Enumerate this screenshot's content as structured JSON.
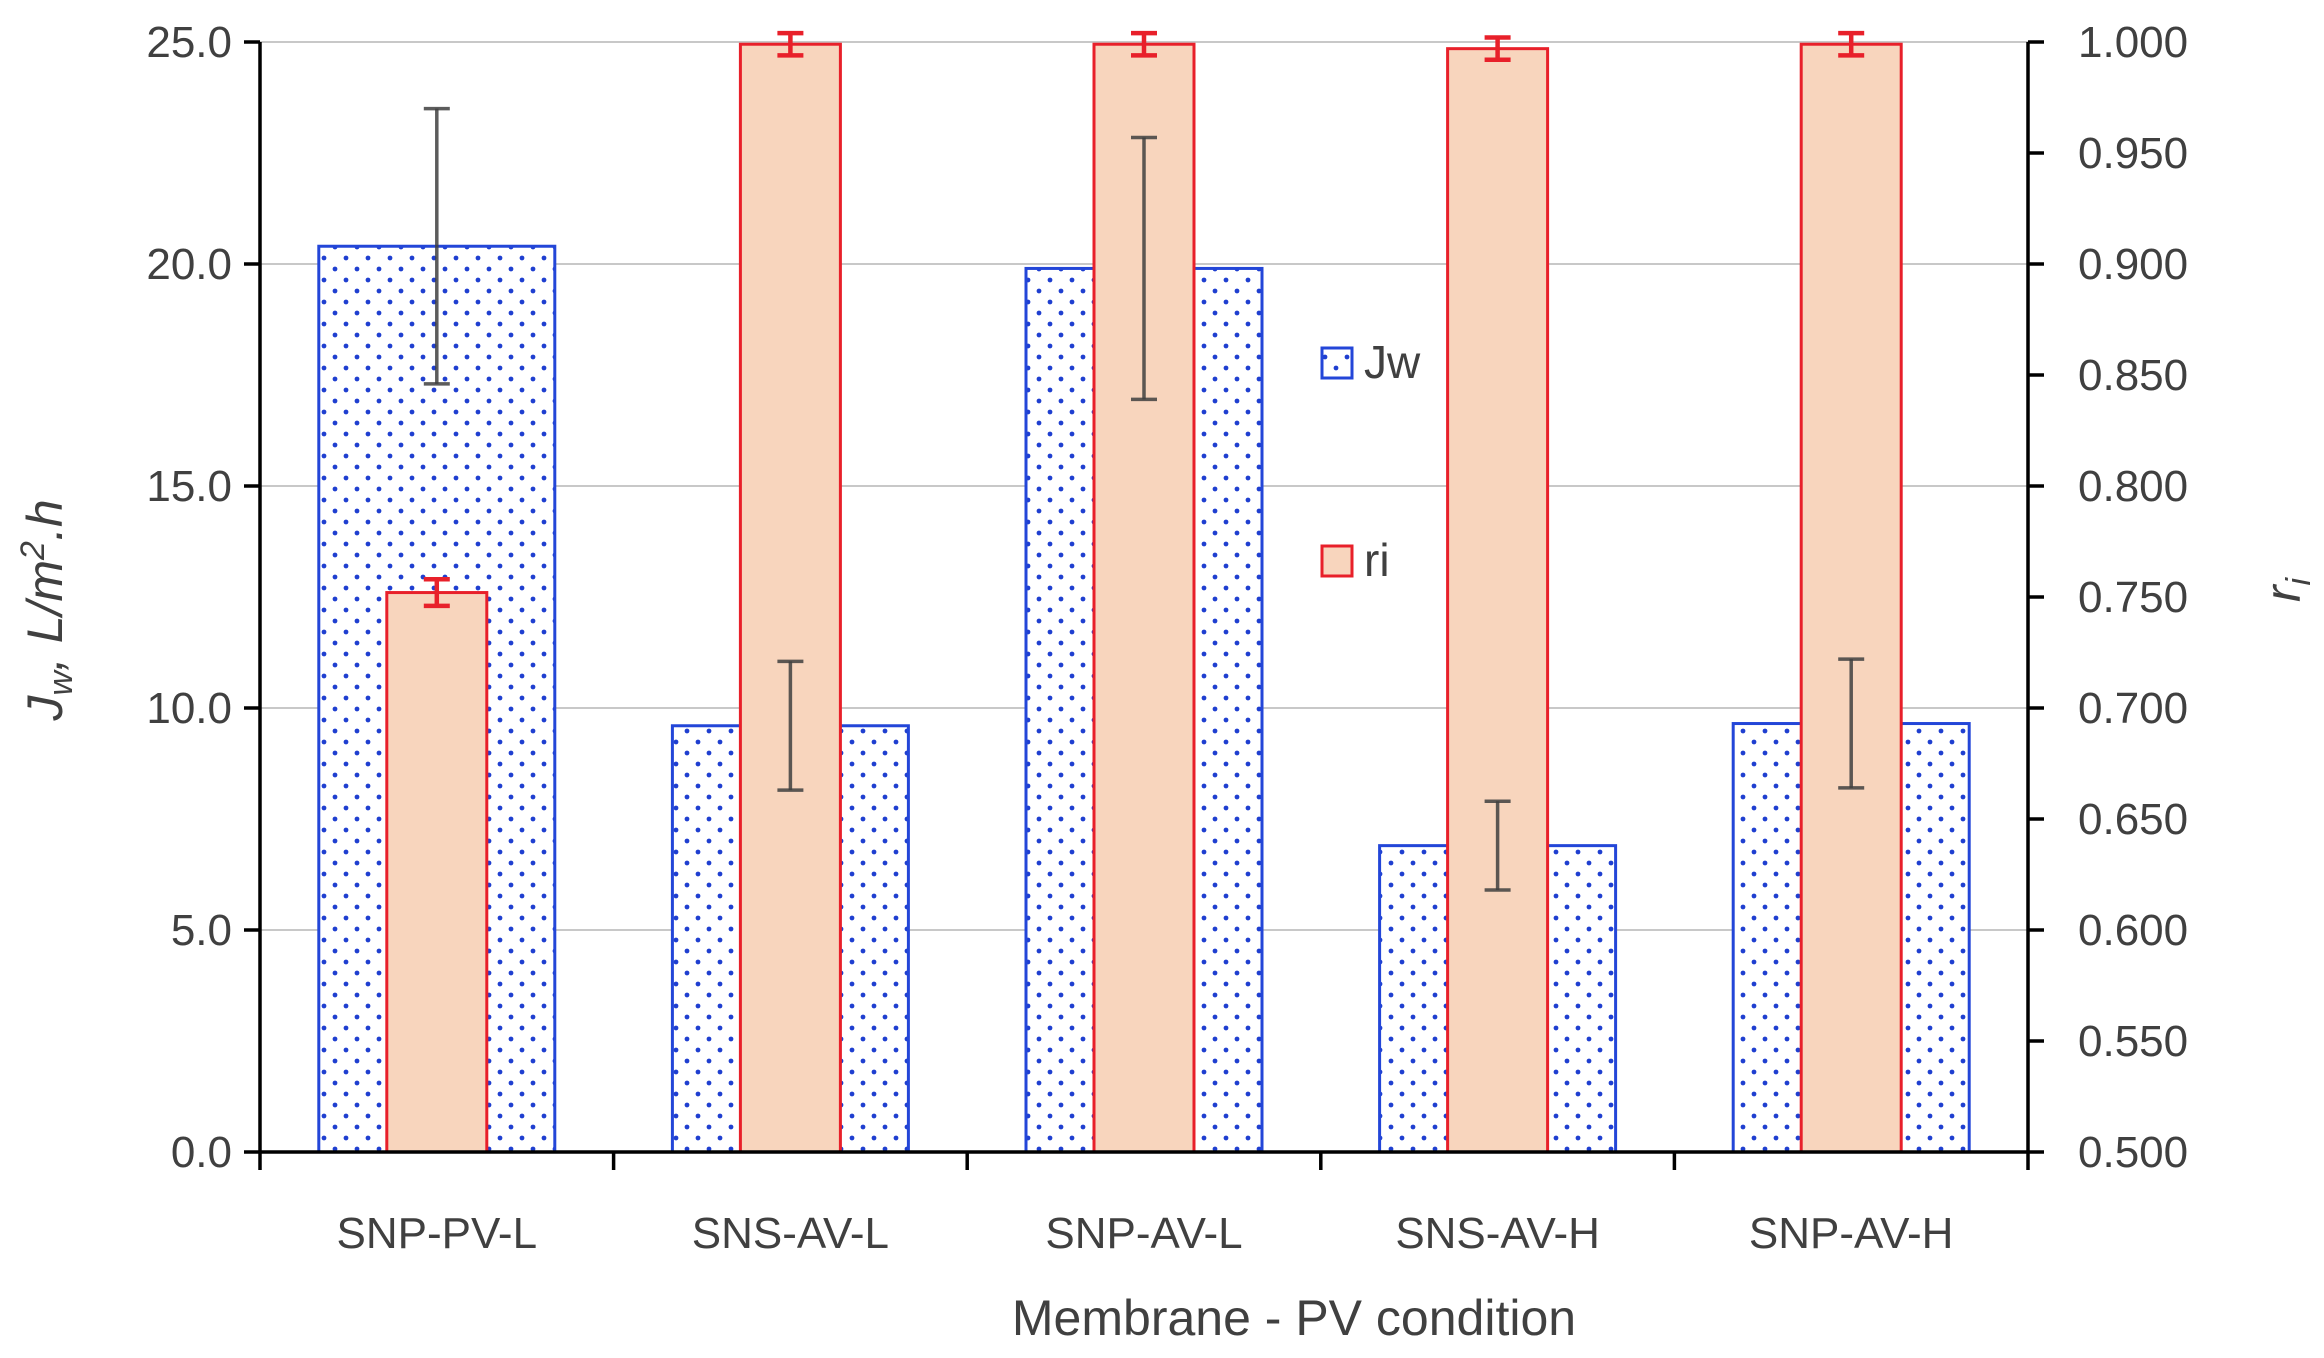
{
  "chart_data": {
    "type": "bar",
    "categories": [
      "SNP-PV-L",
      "SNS-AV-L",
      "SNP-AV-L",
      "SNS-AV-H",
      "SNP-AV-H"
    ],
    "series": [
      {
        "name": "Jw",
        "axis": "left",
        "values": [
          20.4,
          9.6,
          19.9,
          6.9,
          9.65
        ],
        "error": [
          3.1,
          1.45,
          2.95,
          1.0,
          1.45
        ],
        "fill": "#ffffff",
        "dot_color": "#1f3fd0",
        "stroke": "#2346d8",
        "error_color": "#404040"
      },
      {
        "name": "ri",
        "axis": "right",
        "values": [
          0.752,
          0.999,
          0.999,
          0.997,
          0.999
        ],
        "error": [
          0.006,
          0.005,
          0.005,
          0.005,
          0.005
        ],
        "fill": "#f8d5bd",
        "stroke": "#e8202a",
        "error_color": "#e8202a"
      }
    ],
    "title": "",
    "xlabel": "Membrane - PV condition",
    "ylabel_left": {
      "main": "J",
      "sub": "w",
      "mid": ", L/m",
      "sup": "2",
      "end": ".h"
    },
    "ylabel_right": {
      "main": "r",
      "sub": "i"
    },
    "ylim_left": [
      0,
      25
    ],
    "ylim_right": [
      0.5,
      1.0
    ],
    "yticks_left": [
      "0.0",
      "5.0",
      "10.0",
      "15.0",
      "20.0",
      "25.0"
    ],
    "yticks_right": [
      "0.500",
      "0.550",
      "0.600",
      "0.650",
      "0.700",
      "0.750",
      "0.800",
      "0.850",
      "0.900",
      "0.950",
      "1.000"
    ],
    "grid": true,
    "legend_position": "center",
    "grid_color": "#c8c8c8",
    "axis_color": "#000000"
  }
}
